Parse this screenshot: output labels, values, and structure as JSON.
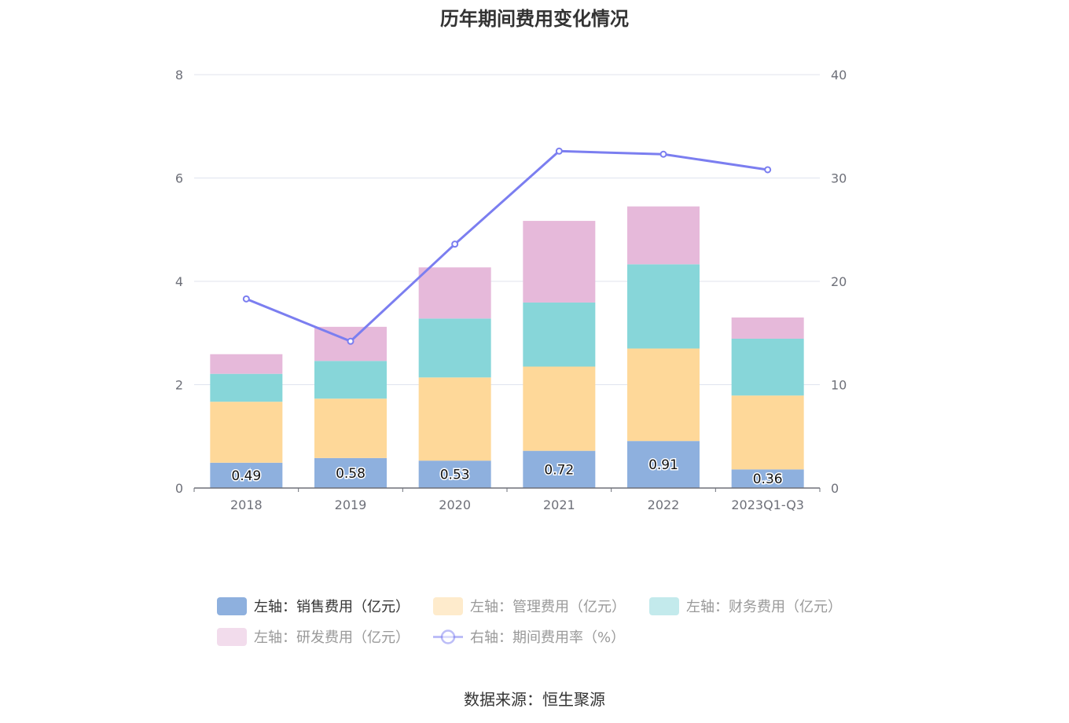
{
  "title": "历年期间费用变化情况",
  "source": "数据来源：恒生聚源",
  "colors": {
    "sales": "#8eb0de",
    "admin": "#fed899",
    "finance": "#87d6d9",
    "rnd": "#e6b9da",
    "rate": "#7b7ef0",
    "grid": "#e0e3ee",
    "axis": "#6e7079",
    "legend_active": "#333333",
    "legend_inactive": "#999999"
  },
  "chart_data": {
    "type": "bar",
    "stacked": true,
    "categories": [
      "2018",
      "2019",
      "2020",
      "2021",
      "2022",
      "2023Q1-Q3"
    ],
    "y_left": {
      "min": 0,
      "max": 8,
      "ticks": [
        "0",
        "2",
        "4",
        "6",
        "8"
      ]
    },
    "y_right": {
      "min": 0,
      "max": 40,
      "ticks": [
        "0",
        "10",
        "20",
        "30",
        "40"
      ]
    },
    "grid": true,
    "legend_position": "bottom",
    "series": [
      {
        "key": "sales",
        "name": "左轴：销售费用（亿元）",
        "type": "bar",
        "axis": "left",
        "values": [
          0.49,
          0.58,
          0.53,
          0.72,
          0.91,
          0.36
        ],
        "data_labels": [
          "0.49",
          "0.58",
          "0.53",
          "0.72",
          "0.91",
          "0.36"
        ]
      },
      {
        "key": "admin",
        "name": "左轴：管理费用（亿元）",
        "type": "bar",
        "axis": "left",
        "values": [
          1.18,
          1.15,
          1.61,
          1.63,
          1.79,
          1.43
        ]
      },
      {
        "key": "finance",
        "name": "左轴：财务费用（亿元）",
        "type": "bar",
        "axis": "left",
        "values": [
          0.54,
          0.73,
          1.14,
          1.24,
          1.63,
          1.1
        ]
      },
      {
        "key": "rnd",
        "name": "左轴：研发费用（亿元）",
        "type": "bar",
        "axis": "left",
        "values": [
          0.38,
          0.66,
          0.99,
          1.58,
          1.12,
          0.41
        ]
      },
      {
        "key": "rate",
        "name": "右轴：期间费用率（%）",
        "type": "line",
        "axis": "right",
        "values": [
          18.3,
          14.2,
          23.6,
          32.6,
          32.3,
          30.8
        ]
      }
    ]
  }
}
